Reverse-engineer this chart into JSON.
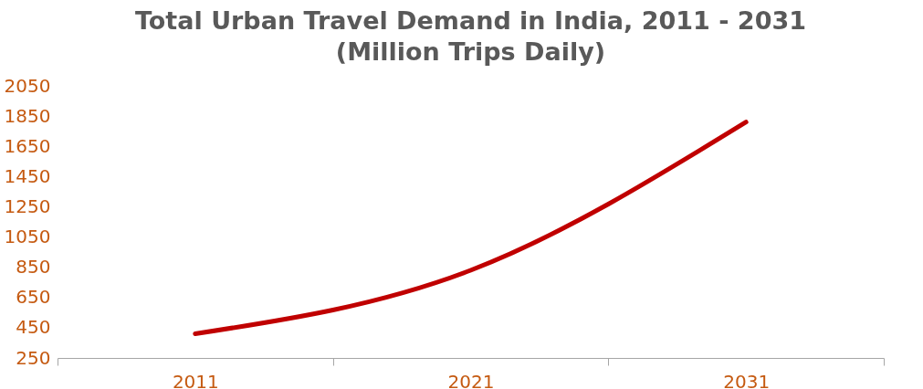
{
  "chart_data": {
    "type": "line",
    "title": [
      "Total Urban Travel Demand in India, 2011 - 2031",
      "(Million Trips Daily)"
    ],
    "categories": [
      "2011",
      "2021",
      "2031"
    ],
    "series": [
      {
        "color": "#c00000",
        "values": [
          410,
          830,
          1810
        ]
      }
    ],
    "ylim": [
      250,
      2050
    ],
    "yticks": [
      250,
      450,
      650,
      850,
      1050,
      1250,
      1450,
      1650,
      1850,
      2050
    ],
    "grid": false
  }
}
